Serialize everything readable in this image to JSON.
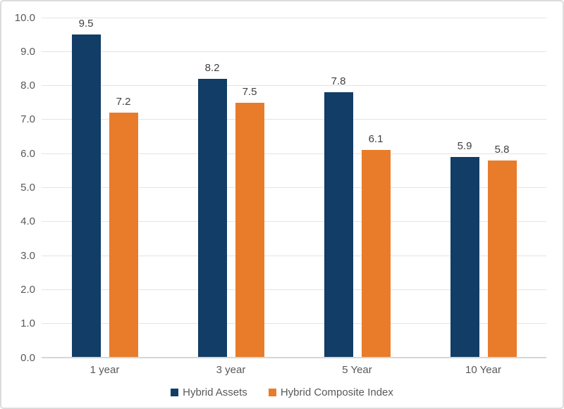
{
  "chart_data": {
    "type": "bar",
    "categories": [
      "1 year",
      "3 year",
      "5 Year",
      "10 Year"
    ],
    "series": [
      {
        "name": "Hybrid Assets",
        "color": "#113d66",
        "values": [
          9.5,
          8.2,
          7.8,
          5.9
        ]
      },
      {
        "name": "Hybrid Composite Index",
        "color": "#e87c2a",
        "values": [
          7.2,
          7.5,
          6.1,
          5.8
        ]
      }
    ],
    "title": "",
    "xlabel": "",
    "ylabel": "",
    "ylim": [
      0,
      10
    ],
    "ytick_step": 1.0,
    "ytick_decimals": 1,
    "grid": true,
    "legend_position": "bottom",
    "data_labels": true
  },
  "colors": {
    "axis_text": "#595959",
    "value_label_text": "#404040",
    "gridline": "#e4e4e4",
    "axis_line": "#d6d6d6",
    "border": "#dcdcdc",
    "background": "#ffffff"
  }
}
